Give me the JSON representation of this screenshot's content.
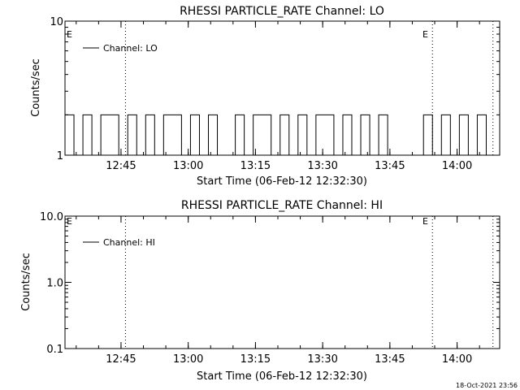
{
  "chart_data": [
    {
      "type": "line",
      "title": "RHESSI PARTICLE_RATE Channel: LO",
      "xlabel": "Start Time (06-Feb-12 12:32:30)",
      "ylabel": "Counts/sec",
      "yscale": "log",
      "xlim": [
        "12:32:30",
        "14:09:30"
      ],
      "ylim": [
        1,
        10
      ],
      "x_ticks": [
        "12:45",
        "13:00",
        "13:15",
        "13:30",
        "13:45",
        "14:00"
      ],
      "y_ticks": [
        "1",
        "10"
      ],
      "grid": false,
      "legend": {
        "position": "top-left",
        "entries": [
          "Channel: LO"
        ]
      },
      "event_lines": [
        {
          "x": "12:46:00",
          "label": ""
        },
        {
          "x": "13:54:30",
          "label": "E"
        },
        {
          "x": "14:08:00",
          "label": ""
        }
      ],
      "corner_marker": "E",
      "series": [
        {
          "name": "Channel: LO",
          "style": "step",
          "x_minutes": [
            0,
            2,
            4,
            6,
            8,
            10,
            12,
            14,
            16,
            18,
            20,
            22,
            24,
            26,
            28,
            30,
            32,
            34,
            36,
            38,
            40,
            42,
            44,
            46,
            48,
            50,
            52,
            54,
            56,
            58,
            60,
            62,
            64,
            66,
            68,
            70,
            72,
            74,
            76,
            78,
            80,
            82,
            84,
            86,
            88,
            90,
            92,
            94
          ],
          "values": [
            2,
            1,
            2,
            1,
            2,
            2,
            1,
            2,
            1,
            2,
            1,
            2,
            2,
            1,
            2,
            1,
            2,
            1,
            1,
            2,
            1,
            2,
            2,
            1,
            2,
            1,
            2,
            1,
            2,
            2,
            1,
            2,
            1,
            2,
            1,
            2,
            1,
            1,
            1,
            1,
            2,
            1,
            2,
            1,
            2,
            1,
            2,
            1
          ]
        }
      ]
    },
    {
      "type": "line",
      "title": "RHESSI PARTICLE_RATE Channel: HI",
      "xlabel": "Start Time (06-Feb-12 12:32:30)",
      "ylabel": "Counts/sec",
      "yscale": "log",
      "xlim": [
        "12:32:30",
        "14:09:30"
      ],
      "ylim": [
        0.1,
        10
      ],
      "x_ticks": [
        "12:45",
        "13:00",
        "13:15",
        "13:30",
        "13:45",
        "14:00"
      ],
      "y_ticks": [
        "0.1",
        "1.0",
        "10.0"
      ],
      "grid": false,
      "legend": {
        "position": "top-left",
        "entries": [
          "Channel: HI"
        ]
      },
      "event_lines": [
        {
          "x": "12:46:00",
          "label": ""
        },
        {
          "x": "13:54:30",
          "label": "E"
        },
        {
          "x": "14:08:00",
          "label": ""
        }
      ],
      "corner_marker": "E",
      "series": [
        {
          "name": "Channel: HI",
          "style": "step",
          "x_minutes": [],
          "values": []
        }
      ]
    }
  ],
  "footer": {
    "timestamp": "18-Oct-2021 23:56"
  }
}
